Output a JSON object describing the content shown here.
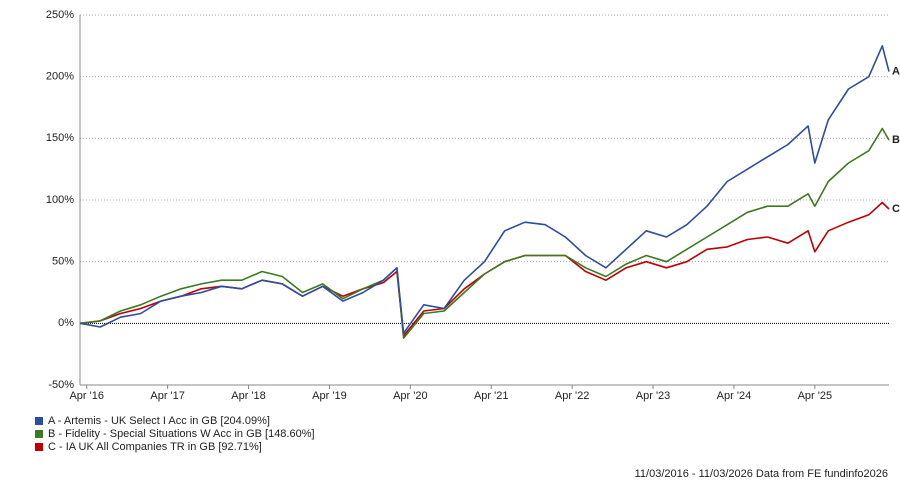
{
  "chart_data": {
    "type": "line",
    "x": [
      "2016-03",
      "2016-06",
      "2016-09",
      "2016-12",
      "2017-03",
      "2017-06",
      "2017-09",
      "2017-12",
      "2018-03",
      "2018-06",
      "2018-09",
      "2018-12",
      "2019-03",
      "2019-06",
      "2019-09",
      "2019-12",
      "2020-02",
      "2020-03",
      "2020-06",
      "2020-09",
      "2020-12",
      "2021-03",
      "2021-06",
      "2021-09",
      "2021-12",
      "2022-03",
      "2022-06",
      "2022-09",
      "2022-12",
      "2023-03",
      "2023-06",
      "2023-09",
      "2023-12",
      "2024-03",
      "2024-06",
      "2024-09",
      "2024-12",
      "2025-03",
      "2025-04",
      "2025-06",
      "2025-09",
      "2025-12",
      "2026-02",
      "2026-03"
    ],
    "xlim": [
      "2016-03",
      "2026-03"
    ],
    "xticks": [
      {
        "value": "2016-04",
        "label": "Apr '16"
      },
      {
        "value": "2017-04",
        "label": "Apr '17"
      },
      {
        "value": "2018-04",
        "label": "Apr '18"
      },
      {
        "value": "2019-04",
        "label": "Apr '19"
      },
      {
        "value": "2020-04",
        "label": "Apr '20"
      },
      {
        "value": "2021-04",
        "label": "Apr '21"
      },
      {
        "value": "2022-04",
        "label": "Apr '22"
      },
      {
        "value": "2023-04",
        "label": "Apr '23"
      },
      {
        "value": "2024-04",
        "label": "Apr '24"
      },
      {
        "value": "2025-04",
        "label": "Apr '25"
      }
    ],
    "ylim": [
      -50,
      250
    ],
    "yticks": [
      {
        "value": -50,
        "label": "-50%"
      },
      {
        "value": 0,
        "label": "0%"
      },
      {
        "value": 50,
        "label": "50%"
      },
      {
        "value": 100,
        "label": "100%"
      },
      {
        "value": 150,
        "label": "150%"
      },
      {
        "value": 200,
        "label": "200%"
      },
      {
        "value": 250,
        "label": "250%"
      }
    ],
    "grid": true,
    "series": [
      {
        "name": "A - Artemis - UK Select I Acc in GB [204.09%]",
        "label": "A",
        "color": "#2b4ea2",
        "values": [
          0,
          -3,
          5,
          8,
          18,
          22,
          25,
          30,
          28,
          35,
          32,
          22,
          30,
          18,
          25,
          35,
          45,
          -8,
          15,
          12,
          35,
          50,
          75,
          82,
          80,
          70,
          55,
          45,
          60,
          75,
          70,
          80,
          95,
          115,
          125,
          135,
          145,
          160,
          130,
          165,
          190,
          200,
          225,
          204.09
        ]
      },
      {
        "name": "B - Fidelity - Special Situations W Acc in GB [148.60%]",
        "label": "B",
        "color": "#3c7a1f",
        "values": [
          0,
          2,
          10,
          15,
          22,
          28,
          32,
          35,
          35,
          42,
          38,
          25,
          32,
          20,
          28,
          35,
          45,
          -12,
          8,
          10,
          25,
          40,
          50,
          55,
          55,
          55,
          45,
          38,
          48,
          55,
          50,
          60,
          70,
          80,
          90,
          95,
          95,
          105,
          95,
          115,
          130,
          140,
          158,
          148.6
        ]
      },
      {
        "name": "C - IA UK All Companies TR in GB [92.71%]",
        "label": "C",
        "color": "#c00000",
        "values": [
          0,
          2,
          8,
          12,
          18,
          22,
          28,
          30,
          28,
          35,
          32,
          22,
          30,
          22,
          28,
          33,
          42,
          -10,
          10,
          12,
          28,
          40,
          50,
          55,
          55,
          55,
          42,
          35,
          45,
          50,
          45,
          50,
          60,
          62,
          68,
          70,
          65,
          75,
          58,
          75,
          82,
          88,
          98,
          92.71
        ]
      }
    ],
    "footer": "11/03/2016 - 11/03/2026 Data from FE fundinfo2026"
  }
}
